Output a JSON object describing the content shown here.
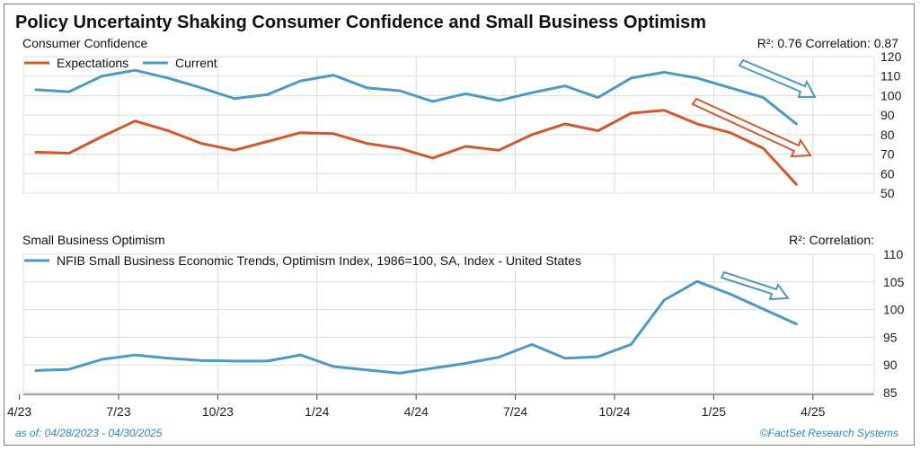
{
  "title": "Policy Uncertainty Shaking Consumer Confidence and Small Business Optimism",
  "footer": {
    "as_of": "as of: 04/28/2023 - 04/30/2025",
    "source": "©FactSet Research Systems"
  },
  "chart_data": [
    {
      "type": "line",
      "title": "Consumer Confidence",
      "stats": "R²: 0.76 Correlation: 0.87",
      "ylim": [
        50,
        120
      ],
      "yticks": [
        50,
        60,
        70,
        80,
        90,
        100,
        110,
        120
      ],
      "x_months_since_apr2023": [
        0,
        1,
        2,
        3,
        4,
        5,
        6,
        7,
        8,
        9,
        10,
        11,
        12,
        13,
        14,
        15,
        16,
        17,
        18,
        19,
        20,
        21,
        22,
        23
      ],
      "series": [
        {
          "name": "Expectations",
          "color": "#cf5a2e",
          "values": [
            71,
            70.5,
            79,
            87,
            82,
            75.5,
            72,
            76.5,
            81,
            80.5,
            75.5,
            73,
            68,
            74,
            72,
            80,
            85.5,
            82,
            91,
            92.5,
            85.5,
            81,
            73,
            54.5
          ]
        },
        {
          "name": "Current",
          "color": "#4c9ac2",
          "values": [
            103,
            102,
            110,
            113,
            109,
            104,
            98.5,
            100.5,
            107.5,
            110.5,
            104,
            102.5,
            97,
            101,
            97.5,
            101.5,
            105,
            99,
            109,
            112,
            109,
            104,
            99,
            85.5
          ]
        }
      ]
    },
    {
      "type": "line",
      "title": "Small Business Optimism",
      "stats": "R²: Correlation:",
      "ylim": [
        85,
        110
      ],
      "yticks": [
        85,
        90,
        95,
        100,
        105,
        110
      ],
      "x_months_since_apr2023": [
        0,
        1,
        2,
        3,
        4,
        5,
        6,
        7,
        8,
        9,
        10,
        11,
        12,
        13,
        14,
        15,
        16,
        17,
        18,
        19,
        20,
        21,
        22,
        23
      ],
      "series": [
        {
          "name": "NFIB Small Business Economic Trends, Optimism Index, 1986=100, SA, Index - United States",
          "color": "#4c9ac2",
          "values": [
            89,
            89.2,
            91,
            91.8,
            91.2,
            90.8,
            90.7,
            90.7,
            91.8,
            89.7,
            89.1,
            88.5,
            89.4,
            90.3,
            91.4,
            93.7,
            91.2,
            91.5,
            93.7,
            101.7,
            105.1,
            102.8,
            100.1,
            97.4
          ]
        }
      ]
    }
  ],
  "x_axis": {
    "tick_labels": [
      "4/23",
      "7/23",
      "10/23",
      "1/24",
      "4/24",
      "7/24",
      "10/24",
      "1/25",
      "4/25"
    ],
    "tick_months_since_apr2023": [
      -0.5,
      2.5,
      5.5,
      8.5,
      11.5,
      14.5,
      17.5,
      20.5,
      23.5
    ]
  }
}
